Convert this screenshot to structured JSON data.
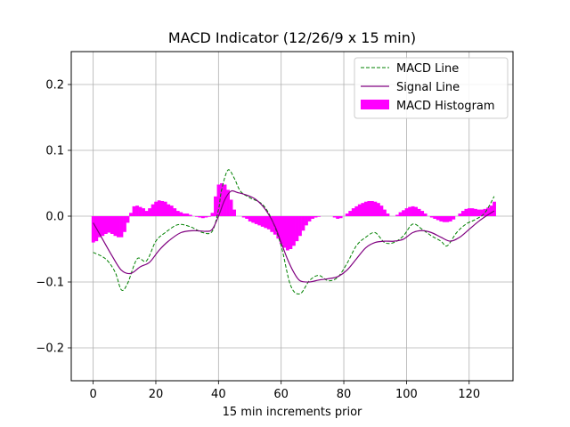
{
  "chart_data": {
    "type": "line",
    "title": "MACD Indicator (12/26/9 x 15 min)",
    "xlabel": "15 min increments prior",
    "ylabel": "",
    "xlim": [
      -7,
      134
    ],
    "ylim": [
      -0.25,
      0.25
    ],
    "xticks": [
      0,
      20,
      40,
      60,
      80,
      100,
      120
    ],
    "yticks": [
      -0.2,
      -0.1,
      0.0,
      0.1,
      0.2
    ],
    "ytick_labels": [
      "−0.2",
      "−0.1",
      "0.0",
      "0.1",
      "0.2"
    ],
    "grid": true,
    "legend_position": "top-right",
    "series": [
      {
        "name": "MACD Line",
        "style": "dashed",
        "color": "#008000",
        "x": [
          0,
          4,
          7,
          9,
          11,
          14,
          17,
          20,
          23,
          27,
          31,
          35,
          38,
          40,
          41,
          43,
          45,
          47,
          50,
          54,
          57,
          60,
          63,
          66,
          69,
          72,
          75,
          78,
          81,
          84,
          87,
          90,
          93,
          96,
          99,
          102,
          105,
          108,
          111,
          113,
          116,
          119,
          122,
          125,
          128
        ],
        "y": [
          -0.055,
          -0.065,
          -0.085,
          -0.112,
          -0.102,
          -0.065,
          -0.068,
          -0.038,
          -0.025,
          -0.013,
          -0.016,
          -0.025,
          -0.023,
          0.01,
          0.04,
          0.07,
          0.058,
          0.038,
          0.028,
          0.018,
          -0.005,
          -0.045,
          -0.105,
          -0.118,
          -0.098,
          -0.09,
          -0.098,
          -0.093,
          -0.072,
          -0.045,
          -0.032,
          -0.025,
          -0.04,
          -0.04,
          -0.03,
          -0.012,
          -0.02,
          -0.03,
          -0.038,
          -0.045,
          -0.025,
          -0.012,
          -0.005,
          0.005,
          0.03
        ]
      },
      {
        "name": "Signal Line",
        "style": "solid",
        "color": "#800080",
        "x": [
          0,
          3,
          6,
          9,
          12,
          15,
          18,
          21,
          24,
          28,
          32,
          36,
          38,
          40,
          42,
          44,
          46,
          49,
          52,
          55,
          58,
          60,
          62,
          64,
          66,
          69,
          72,
          75,
          78,
          81,
          84,
          87,
          90,
          93,
          96,
          99,
          102,
          105,
          108,
          111,
          114,
          117,
          120,
          123,
          126,
          128
        ],
        "y": [
          -0.01,
          -0.035,
          -0.06,
          -0.082,
          -0.087,
          -0.077,
          -0.07,
          -0.052,
          -0.038,
          -0.025,
          -0.022,
          -0.023,
          -0.02,
          0.0,
          0.025,
          0.038,
          0.036,
          0.032,
          0.025,
          0.01,
          -0.015,
          -0.04,
          -0.065,
          -0.085,
          -0.098,
          -0.1,
          -0.097,
          -0.095,
          -0.092,
          -0.082,
          -0.065,
          -0.048,
          -0.04,
          -0.038,
          -0.038,
          -0.035,
          -0.025,
          -0.022,
          -0.025,
          -0.032,
          -0.038,
          -0.032,
          -0.02,
          -0.008,
          0.002,
          0.008
        ]
      }
    ],
    "histogram": {
      "name": "MACD Histogram",
      "color": "#ff00ff",
      "x": [
        0,
        1,
        2,
        3,
        4,
        5,
        6,
        7,
        8,
        9,
        10,
        11,
        12,
        13,
        14,
        15,
        16,
        17,
        18,
        19,
        20,
        21,
        22,
        23,
        24,
        25,
        26,
        27,
        28,
        29,
        30,
        31,
        32,
        33,
        34,
        35,
        36,
        37,
        38,
        39,
        40,
        41,
        42,
        43,
        44,
        45,
        46,
        47,
        48,
        49,
        50,
        51,
        52,
        53,
        54,
        55,
        56,
        57,
        58,
        59,
        60,
        61,
        62,
        63,
        64,
        65,
        66,
        67,
        68,
        69,
        70,
        71,
        72,
        73,
        74,
        75,
        76,
        77,
        78,
        79,
        80,
        81,
        82,
        83,
        84,
        85,
        86,
        87,
        88,
        89,
        90,
        91,
        92,
        93,
        94,
        95,
        96,
        97,
        98,
        99,
        100,
        101,
        102,
        103,
        104,
        105,
        106,
        107,
        108,
        109,
        110,
        111,
        112,
        113,
        114,
        115,
        116,
        117,
        118,
        119,
        120,
        121,
        122,
        123,
        124,
        125,
        126,
        127,
        128
      ],
      "values": [
        -0.04,
        -0.038,
        -0.032,
        -0.03,
        -0.027,
        -0.025,
        -0.027,
        -0.03,
        -0.032,
        -0.032,
        -0.024,
        -0.01,
        0.005,
        0.015,
        0.016,
        0.014,
        0.012,
        0.008,
        0.012,
        0.018,
        0.022,
        0.024,
        0.023,
        0.022,
        0.018,
        0.016,
        0.012,
        0.008,
        0.006,
        0.004,
        0.004,
        0.002,
        0.0,
        -0.001,
        -0.002,
        -0.003,
        -0.002,
        -0.001,
        0.005,
        0.03,
        0.048,
        0.05,
        0.048,
        0.04,
        0.025,
        0.01,
        0.0,
        0.0,
        -0.002,
        -0.004,
        -0.008,
        -0.01,
        -0.012,
        -0.014,
        -0.016,
        -0.018,
        -0.02,
        -0.024,
        -0.028,
        -0.034,
        -0.042,
        -0.048,
        -0.052,
        -0.05,
        -0.045,
        -0.038,
        -0.03,
        -0.022,
        -0.014,
        -0.008,
        -0.004,
        -0.002,
        -0.001,
        0.0,
        0.0,
        0.0,
        0.0,
        -0.002,
        -0.004,
        -0.003,
        0.0,
        0.004,
        0.008,
        0.012,
        0.015,
        0.018,
        0.02,
        0.022,
        0.023,
        0.023,
        0.022,
        0.02,
        0.016,
        0.01,
        0.004,
        0.0,
        0.0,
        0.002,
        0.006,
        0.009,
        0.012,
        0.014,
        0.015,
        0.014,
        0.011,
        0.008,
        0.004,
        0.0,
        -0.002,
        -0.004,
        -0.006,
        -0.008,
        -0.009,
        -0.009,
        -0.008,
        -0.005,
        0.0,
        0.004,
        0.008,
        0.011,
        0.012,
        0.012,
        0.011,
        0.01,
        0.01,
        0.011,
        0.013,
        0.016,
        0.022
      ]
    }
  }
}
